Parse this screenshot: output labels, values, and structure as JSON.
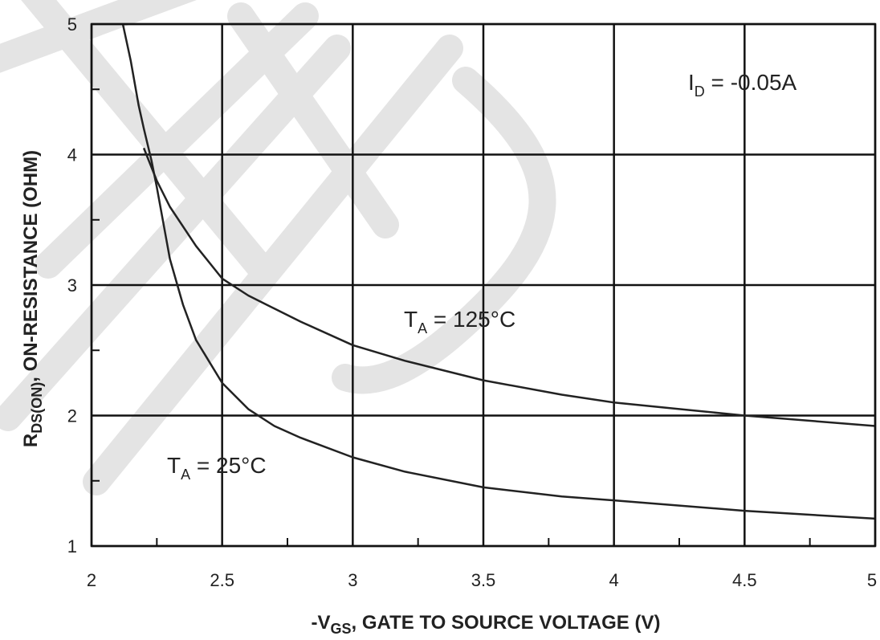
{
  "chart_data": {
    "type": "line",
    "xlabel": {
      "prefix": "-V",
      "sub": "GS",
      "rest": ", GATE TO SOURCE VOLTAGE (V)"
    },
    "ylabel": {
      "prefix": "R",
      "sub": "DS(ON)",
      "rest": ", ON-RESISTANCE (OHM)"
    },
    "xlim": [
      2,
      5
    ],
    "ylim": [
      1,
      5
    ],
    "x_ticks": [
      2,
      2.5,
      3,
      3.5,
      4,
      4.5,
      5
    ],
    "x_tick_labels": [
      "2",
      "2.5",
      "3",
      "3.5",
      "4",
      "4.5",
      "5"
    ],
    "y_ticks": [
      1,
      2,
      3,
      4,
      5
    ],
    "y_tick_labels": [
      "1",
      "2",
      "3",
      "4",
      "5"
    ],
    "grid": true,
    "annotation": {
      "prefix": "I",
      "sub": "D",
      "rest": " = -0.05A"
    },
    "series": [
      {
        "name": {
          "prefix": "T",
          "sub": "A",
          "rest": " = 25°C"
        },
        "x": [
          2.12,
          2.15,
          2.18,
          2.2,
          2.23,
          2.25,
          2.28,
          2.3,
          2.35,
          2.4,
          2.5,
          2.6,
          2.7,
          2.8,
          3.0,
          3.2,
          3.5,
          3.8,
          4.0,
          4.5,
          5.0
        ],
        "y": [
          5.0,
          4.72,
          4.38,
          4.2,
          3.95,
          3.75,
          3.42,
          3.2,
          2.85,
          2.58,
          2.25,
          2.05,
          1.92,
          1.83,
          1.68,
          1.57,
          1.45,
          1.38,
          1.35,
          1.27,
          1.21
        ]
      },
      {
        "name": {
          "prefix": "T",
          "sub": "A",
          "rest": " = 125°C"
        },
        "x": [
          2.2,
          2.25,
          2.3,
          2.4,
          2.5,
          2.6,
          2.7,
          2.8,
          3.0,
          3.2,
          3.5,
          3.8,
          4.0,
          4.5,
          5.0
        ],
        "y": [
          4.05,
          3.8,
          3.6,
          3.3,
          3.05,
          2.92,
          2.82,
          2.72,
          2.54,
          2.42,
          2.27,
          2.16,
          2.1,
          2.0,
          1.92
        ]
      }
    ]
  },
  "watermark": {
    "letters": "A W"
  }
}
